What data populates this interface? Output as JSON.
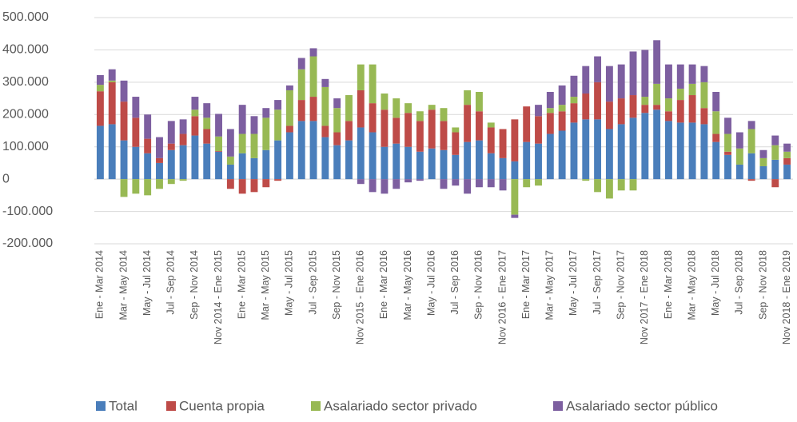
{
  "chart_data": {
    "type": "stacked-bar",
    "categories": [
      "Ene - Mar 2014",
      null,
      "Mar - May 2014",
      null,
      "May - Jul 2014",
      null,
      "Jul - Sep 2014",
      null,
      "Sep - Nov 2014",
      null,
      "Nov 2014 - Ene 2015",
      null,
      "Ene - Mar 2015",
      null,
      "Mar - May 2015",
      null,
      "May - Jul 2015",
      null,
      "Jul - Sep 2015",
      null,
      "Sep - Nov 2015",
      null,
      "Nov 2015 - Ene 2016",
      null,
      "Ene - Mar 2016",
      null,
      "Mar - May 2016",
      null,
      "May - Jul 2016",
      null,
      "Jul - Sep 2016",
      null,
      "Sep - Nov 2016",
      null,
      "Nov 2016 - Ene 2017",
      null,
      "Ene - Mar 2017",
      null,
      "Mar - May 2017",
      null,
      "May - Jul 2017",
      null,
      "Jul - Sep 2017",
      null,
      "Sep - Nov 2017",
      null,
      "Nov 2017 - Ene 2018",
      null,
      "Ene - Mar 2018",
      null,
      "Mar - May 2018",
      null,
      "May - Jul 2018",
      null,
      "Jul - Sep 2018",
      null,
      "Sep - Nov 2018",
      null,
      "Nov 2018 - Ene 2019"
    ],
    "series": [
      {
        "name": "Total",
        "color": "#4a7ebb",
        "values": [
          165000,
          170000,
          120000,
          100000,
          80000,
          50000,
          90000,
          105000,
          135000,
          110000,
          85000,
          45000,
          80000,
          65000,
          90000,
          120000,
          145000,
          180000,
          180000,
          130000,
          105000,
          120000,
          160000,
          145000,
          100000,
          110000,
          100000,
          85000,
          95000,
          90000,
          75000,
          115000,
          120000,
          80000,
          65000,
          55000,
          115000,
          110000,
          140000,
          150000,
          175000,
          185000,
          185000,
          155000,
          170000,
          190000,
          205000,
          215000,
          180000,
          175000,
          175000,
          170000,
          115000,
          75000,
          45000,
          80000,
          40000,
          60000,
          45000
        ]
      },
      {
        "name": "Cuenta propia",
        "color": "#be4b48",
        "values": [
          107000,
          130000,
          120000,
          90000,
          45000,
          15000,
          20000,
          35000,
          60000,
          45000,
          2000,
          -30000,
          -45000,
          -40000,
          -25000,
          -5000,
          20000,
          65000,
          75000,
          35000,
          40000,
          60000,
          115000,
          90000,
          115000,
          80000,
          105000,
          95000,
          120000,
          90000,
          70000,
          115000,
          90000,
          80000,
          90000,
          130000,
          110000,
          85000,
          65000,
          60000,
          60000,
          80000,
          115000,
          85000,
          80000,
          70000,
          25000,
          15000,
          30000,
          70000,
          85000,
          50000,
          25000,
          10000,
          0,
          -5000,
          0,
          -25000,
          20000
        ]
      },
      {
        "name": "Asalariado sector privado",
        "color": "#98b954",
        "values": [
          20000,
          5000,
          -55000,
          -45000,
          -50000,
          -30000,
          -15000,
          -5000,
          20000,
          35000,
          45000,
          25000,
          60000,
          75000,
          100000,
          95000,
          110000,
          95000,
          125000,
          120000,
          75000,
          80000,
          80000,
          120000,
          50000,
          60000,
          30000,
          30000,
          15000,
          40000,
          15000,
          45000,
          60000,
          15000,
          0,
          -110000,
          -25000,
          -20000,
          15000,
          20000,
          20000,
          -5000,
          -40000,
          -60000,
          -35000,
          -35000,
          25000,
          65000,
          40000,
          35000,
          35000,
          80000,
          70000,
          55000,
          50000,
          75000,
          25000,
          45000,
          20000
        ]
      },
      {
        "name": "Asalariado sector público",
        "color": "#7d5fa0",
        "values": [
          30000,
          35000,
          65000,
          65000,
          75000,
          65000,
          70000,
          45000,
          40000,
          45000,
          70000,
          85000,
          90000,
          55000,
          30000,
          30000,
          15000,
          35000,
          25000,
          25000,
          30000,
          0,
          -15000,
          -40000,
          -45000,
          -30000,
          -10000,
          -5000,
          0,
          -30000,
          -20000,
          -45000,
          -25000,
          -25000,
          -35000,
          -10000,
          0,
          35000,
          50000,
          60000,
          65000,
          85000,
          80000,
          110000,
          105000,
          135000,
          145000,
          135000,
          105000,
          75000,
          60000,
          50000,
          60000,
          50000,
          50000,
          25000,
          25000,
          30000,
          25000
        ]
      }
    ],
    "ylim": [
      -200000,
      500000
    ],
    "yticks": [
      {
        "value": -200000,
        "label": "-200.000"
      },
      {
        "value": -100000,
        "label": "-100.000"
      },
      0,
      {
        "value": 100000,
        "label": "100.000"
      },
      {
        "value": 200000,
        "label": "200.000"
      },
      {
        "value": 300000,
        "label": "300.000"
      },
      {
        "value": 400000,
        "label": "400.000"
      },
      {
        "value": 500000,
        "label": "500.000"
      }
    ],
    "grid": true
  }
}
